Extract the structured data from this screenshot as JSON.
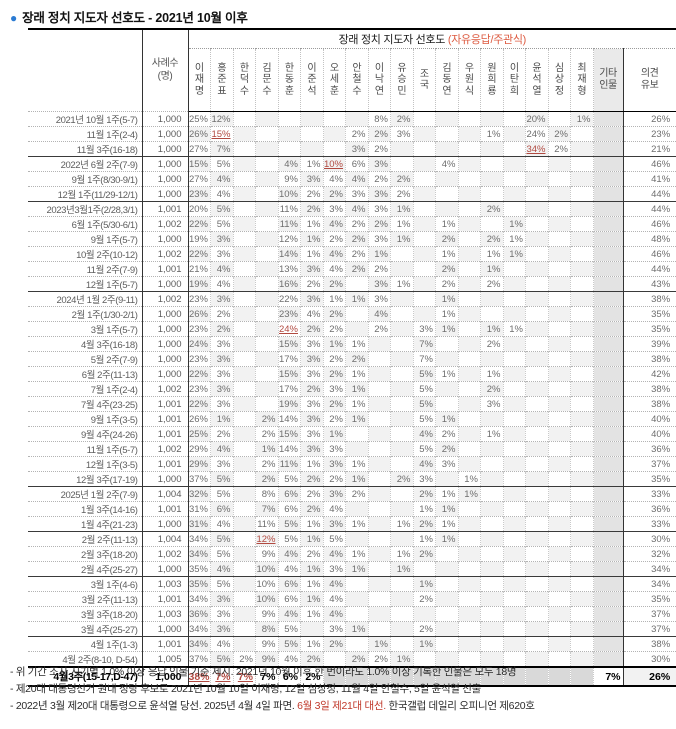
{
  "title": {
    "bullet": "●",
    "text": "장래 정치 지도자 선호도 - 2021년 10월 이후"
  },
  "table": {
    "band_title": "장래 정치 지도자 선호도 ",
    "band_note": "(자유응답/주관식)",
    "n_header": "사례수\n(명)",
    "columns": [
      "이재명",
      "홍준표",
      "한덕수",
      "김문수",
      "한동훈",
      "이준석",
      "오세훈",
      "안철수",
      "이낙연",
      "유승민",
      "조국",
      "김동연",
      "우원식",
      "원희룡",
      "이탄희",
      "윤석열",
      "심상정",
      "최재형"
    ],
    "etc_label": "기타\n인물",
    "reserve_label": "의견\n유보",
    "accent_red": "#b14a41",
    "rows": [
      {
        "label": "2021년 10월 1주(5-7)",
        "n": "1,000",
        "v": [
          "25",
          "12",
          "",
          "",
          "",
          "",
          "",
          "",
          "8",
          "2",
          "",
          "",
          "",
          "",
          "",
          "20",
          "",
          "1",
          "",
          "26"
        ]
      },
      {
        "label": "11월 1주(2-4)",
        "n": "1,000",
        "v": [
          "26",
          "*15",
          "",
          "",
          "",
          "",
          "",
          "2",
          "2",
          "3",
          "",
          "",
          "",
          "1",
          "",
          "24",
          "2",
          "",
          "",
          "23"
        ]
      },
      {
        "label": "11월 3주(16-18)",
        "n": "1,000",
        "v": [
          "27",
          "7",
          "",
          "",
          "",
          "",
          "",
          "3",
          "2",
          "",
          "",
          "",
          "",
          "",
          "",
          "*34",
          "2",
          "",
          "",
          "21"
        ]
      },
      {
        "label": "2022년 6월 2주(7-9)",
        "n": "1,000",
        "sep": "solid",
        "v": [
          "15",
          "5",
          "",
          "",
          "4",
          "1",
          "*10",
          "6",
          "3",
          "",
          "",
          "4",
          "",
          "",
          "",
          "",
          "",
          "",
          "",
          "46"
        ]
      },
      {
        "label": "9월 1주(8/30-9/1)",
        "n": "1,000",
        "v": [
          "27",
          "4",
          "",
          "",
          "9",
          "3",
          "4",
          "4",
          "2",
          "2",
          "",
          "",
          "",
          "",
          "",
          "",
          "",
          "",
          "",
          "41"
        ]
      },
      {
        "label": "12월 1주(11/29-12/1)",
        "n": "1,000",
        "v": [
          "23",
          "4",
          "",
          "",
          "10",
          "2",
          "2",
          "3",
          "3",
          "2",
          "",
          "",
          "",
          "",
          "",
          "",
          "",
          "",
          "",
          "44"
        ]
      },
      {
        "label": "2023년3월1주(2/28,3/1)",
        "n": "1,001",
        "sep": "solid",
        "v": [
          "20",
          "5",
          "",
          "",
          "11",
          "2",
          "3",
          "4",
          "3",
          "1",
          "",
          "",
          "",
          "2",
          "",
          "",
          "",
          "",
          "",
          "44"
        ]
      },
      {
        "label": "6월 1주(5/30-6/1)",
        "n": "1,002",
        "v": [
          "22",
          "5",
          "",
          "",
          "11",
          "1",
          "4",
          "2",
          "2",
          "1",
          "",
          "1",
          "",
          "",
          "1",
          "",
          "",
          "",
          "",
          "46"
        ]
      },
      {
        "label": "9월 1주(5-7)",
        "n": "1,000",
        "v": [
          "19",
          "3",
          "",
          "",
          "12",
          "1",
          "2",
          "2",
          "3",
          "1",
          "",
          "2",
          "",
          "2",
          "1",
          "",
          "",
          "",
          "",
          "48"
        ]
      },
      {
        "label": "10월 2주(10-12)",
        "n": "1,002",
        "v": [
          "22",
          "3",
          "",
          "",
          "14",
          "1",
          "4",
          "2",
          "1",
          "",
          "",
          "1",
          "",
          "1",
          "1",
          "",
          "",
          "",
          "",
          "46"
        ]
      },
      {
        "label": "11월 2주(7-9)",
        "n": "1,001",
        "v": [
          "21",
          "4",
          "",
          "",
          "13",
          "3",
          "4",
          "2",
          "2",
          "",
          "",
          "2",
          "",
          "1",
          "",
          "",
          "",
          "",
          "",
          "44"
        ]
      },
      {
        "label": "12월 1주(5-7)",
        "n": "1,000",
        "v": [
          "19",
          "4",
          "",
          "",
          "16",
          "2",
          "2",
          "",
          "3",
          "1",
          "",
          "2",
          "",
          "2",
          "",
          "",
          "",
          "",
          "",
          "43"
        ]
      },
      {
        "label": "2024년 1월 2주(9-11)",
        "n": "1,002",
        "sep": "solid",
        "v": [
          "23",
          "3",
          "",
          "",
          "22",
          "3",
          "1",
          "1",
          "3",
          "",
          "",
          "1",
          "",
          "",
          "",
          "",
          "",
          "",
          "",
          "38"
        ]
      },
      {
        "label": "2월 1주(1/30-2/1)",
        "n": "1,000",
        "v": [
          "26",
          "2",
          "",
          "",
          "23",
          "4",
          "2",
          "",
          "4",
          "",
          "",
          "1",
          "",
          "",
          "",
          "",
          "",
          "",
          "",
          "35"
        ]
      },
      {
        "label": "3월 1주(5-7)",
        "n": "1,000",
        "v": [
          "23",
          "2",
          "",
          "",
          "*24",
          "2",
          "2",
          "",
          "2",
          "",
          "3",
          "1",
          "",
          "1",
          "1",
          "",
          "",
          "",
          "",
          "35"
        ]
      },
      {
        "label": "4월 3주(16-18)",
        "n": "1,000",
        "v": [
          "24",
          "3",
          "",
          "",
          "15",
          "3",
          "1",
          "1",
          "",
          "",
          "7",
          "",
          "",
          "2",
          "",
          "",
          "",
          "",
          "",
          "39"
        ]
      },
      {
        "label": "5월 2주(7-9)",
        "n": "1,000",
        "v": [
          "23",
          "3",
          "",
          "",
          "17",
          "3",
          "2",
          "2",
          "",
          "",
          "7",
          "",
          "",
          "",
          "",
          "",
          "",
          "",
          "",
          "38"
        ]
      },
      {
        "label": "6월 2주(11-13)",
        "n": "1,000",
        "v": [
          "22",
          "3",
          "",
          "",
          "15",
          "3",
          "2",
          "1",
          "",
          "",
          "5",
          "1",
          "",
          "1",
          "",
          "",
          "",
          "",
          "",
          "42"
        ]
      },
      {
        "label": "7월 1주(2-4)",
        "n": "1,002",
        "v": [
          "23",
          "3",
          "",
          "",
          "17",
          "2",
          "3",
          "1",
          "",
          "",
          "5",
          "",
          "",
          "2",
          "",
          "",
          "",
          "",
          "",
          "38"
        ]
      },
      {
        "label": "7월 4주(23-25)",
        "n": "1,001",
        "v": [
          "22",
          "3",
          "",
          "",
          "19",
          "3",
          "2",
          "1",
          "",
          "",
          "5",
          "",
          "",
          "3",
          "",
          "",
          "",
          "",
          "",
          "38"
        ]
      },
      {
        "label": "9월 1주(3-5)",
        "n": "1,001",
        "v": [
          "26",
          "1",
          "",
          "2",
          "14",
          "3",
          "2",
          "1",
          "",
          "",
          "5",
          "1",
          "",
          "",
          "",
          "",
          "",
          "",
          "",
          "40"
        ]
      },
      {
        "label": "9월 4주(24-26)",
        "n": "1,001",
        "v": [
          "25",
          "2",
          "",
          "2",
          "15",
          "3",
          "1",
          "",
          "",
          "",
          "4",
          "2",
          "",
          "1",
          "",
          "",
          "",
          "",
          "",
          "40"
        ]
      },
      {
        "label": "11월 1주(5-7)",
        "n": "1,002",
        "v": [
          "29",
          "4",
          "",
          "1",
          "14",
          "3",
          "3",
          "",
          "",
          "",
          "5",
          "2",
          "",
          "",
          "",
          "",
          "",
          "",
          "",
          "36"
        ]
      },
      {
        "label": "12월 1주(3-5)",
        "n": "1,001",
        "v": [
          "29",
          "3",
          "",
          "2",
          "11",
          "1",
          "3",
          "1",
          "",
          "",
          "4",
          "3",
          "",
          "",
          "",
          "",
          "",
          "",
          "",
          "37"
        ]
      },
      {
        "label": "12월 3주(17-19)",
        "n": "1,000",
        "v": [
          "37",
          "5",
          "",
          "2",
          "5",
          "2",
          "2",
          "1",
          "",
          "2",
          "3",
          "",
          "1",
          "",
          "",
          "",
          "",
          "",
          "",
          "35"
        ]
      },
      {
        "label": "2025년 1월 2주(7-9)",
        "n": "1,004",
        "sep": "solid",
        "v": [
          "32",
          "5",
          "",
          "8",
          "6",
          "2",
          "3",
          "2",
          "",
          "",
          "2",
          "1",
          "1",
          "",
          "",
          "",
          "",
          "",
          "",
          "33"
        ]
      },
      {
        "label": "1월 3주(14-16)",
        "n": "1,001",
        "v": [
          "31",
          "6",
          "",
          "7",
          "6",
          "2",
          "4",
          "",
          "",
          "",
          "1",
          "1",
          "",
          "",
          "",
          "",
          "",
          "",
          "",
          "36"
        ]
      },
      {
        "label": "1월 4주(21-23)",
        "n": "1,000",
        "v": [
          "31",
          "4",
          "",
          "11",
          "5",
          "1",
          "3",
          "1",
          "",
          "1",
          "2",
          "1",
          "",
          "",
          "",
          "",
          "",
          "",
          "",
          "33"
        ]
      },
      {
        "label": "2월 2주(11-13)",
        "n": "1,004",
        "sep": "solid",
        "v": [
          "34",
          "5",
          "",
          "*12",
          "5",
          "1",
          "5",
          "",
          "",
          "",
          "1",
          "1",
          "",
          "",
          "",
          "",
          "",
          "",
          "",
          "30"
        ]
      },
      {
        "label": "2월 3주(18-20)",
        "n": "1,002",
        "v": [
          "34",
          "5",
          "",
          "9",
          "4",
          "2",
          "4",
          "1",
          "",
          "1",
          "2",
          "",
          "",
          "",
          "",
          "",
          "",
          "",
          "",
          "32"
        ]
      },
      {
        "label": "2월 4주(25-27)",
        "n": "1,000",
        "v": [
          "35",
          "4",
          "",
          "10",
          "4",
          "1",
          "3",
          "1",
          "",
          "1",
          "",
          "",
          "",
          "",
          "",
          "",
          "",
          "",
          "",
          "34"
        ]
      },
      {
        "label": "3월 1주(4-6)",
        "n": "1,003",
        "sep": "solid",
        "v": [
          "35",
          "5",
          "",
          "10",
          "6",
          "1",
          "4",
          "",
          "",
          "",
          "1",
          "",
          "",
          "",
          "",
          "",
          "",
          "",
          "",
          "34"
        ]
      },
      {
        "label": "3월 2주(11-13)",
        "n": "1,001",
        "v": [
          "34",
          "3",
          "",
          "10",
          "6",
          "1",
          "4",
          "",
          "",
          "",
          "2",
          "",
          "",
          "",
          "",
          "",
          "",
          "",
          "",
          "35"
        ]
      },
      {
        "label": "3월 3주(18-20)",
        "n": "1,003",
        "v": [
          "36",
          "3",
          "",
          "9",
          "4",
          "1",
          "4",
          "",
          "",
          "",
          "",
          "",
          "",
          "",
          "",
          "",
          "",
          "",
          "",
          "37"
        ]
      },
      {
        "label": "3월 4주(25-27)",
        "n": "1,000",
        "v": [
          "34",
          "3",
          "",
          "8",
          "5",
          "",
          "3",
          "1",
          "",
          "",
          "2",
          "",
          "",
          "",
          "",
          "",
          "",
          "",
          "",
          "37"
        ]
      },
      {
        "label": "4월 1주(1-3)",
        "n": "1,001",
        "sep": "solid",
        "v": [
          "34",
          "4",
          "",
          "9",
          "5",
          "1",
          "2",
          "",
          "1",
          "",
          "1",
          "",
          "",
          "",
          "",
          "",
          "",
          "",
          "",
          "38"
        ]
      },
      {
        "label": "4월 2주(8-10, D-54)",
        "n": "1,005",
        "v": [
          "37",
          "5",
          "2",
          "9",
          "4",
          "2",
          "",
          "2",
          "2",
          "1",
          "",
          "",
          "",
          "",
          "",
          "",
          "",
          "",
          "",
          "30"
        ]
      },
      {
        "label": "4월3주(15-17,D-47)",
        "n": "1,000",
        "sep": "heavy",
        "total": true,
        "v": [
          "*38",
          "*7",
          "*7",
          "7",
          "6",
          "2",
          "",
          "",
          "",
          "",
          "",
          "",
          "",
          "",
          "",
          "",
          "",
          "",
          "7",
          "26"
        ]
      }
    ]
  },
  "footer": {
    "line1": "- 위 기간 조사 시기별 1.0% 이상 응답 인물 기준 제시. 2021년 10월 이후 한 번이라도 1.0% 이상 기록한 인물은 모두 18명",
    "line2": "- 제20대 대통령선거 원내 정당 후보로 2021년 10월 10일 이재명, 12일 심상정, 11월 4일 안철수, 5일 윤석열 선출",
    "line3": {
      "pre": "- 2022년 3월 제20대 대통령으로 윤석열 당선. 2025년 4월 4일 파면. ",
      "red": "6월 3일 제21대 대선.",
      "post": " 한국갤럽 데일리 오피니언 제620호"
    }
  }
}
